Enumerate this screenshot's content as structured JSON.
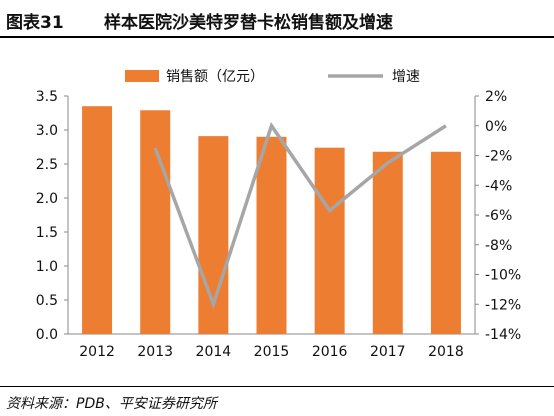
{
  "figure": {
    "label": "图表31",
    "title": "样本医院沙美特罗替卡松销售额及增速",
    "source": "资料来源：PDB、平安证券研究所"
  },
  "chart_data": {
    "type": "bar",
    "categories": [
      "2012",
      "2013",
      "2014",
      "2015",
      "2016",
      "2017",
      "2018"
    ],
    "series": [
      {
        "name": "销售额（亿元）",
        "type": "bar",
        "axis": "left",
        "color": "#ED7D31",
        "values": [
          3.35,
          3.29,
          2.91,
          2.9,
          2.74,
          2.68,
          2.68
        ]
      },
      {
        "name": "增速",
        "type": "line",
        "axis": "right",
        "color": "#A6A6A6",
        "values": [
          null,
          -1.5,
          -12.0,
          0.0,
          -5.7,
          -2.5,
          0.0
        ]
      }
    ],
    "y_left": {
      "min": 0,
      "max": 3.5,
      "ticks": [
        "0.0",
        "0.5",
        "1.0",
        "1.5",
        "2.0",
        "2.5",
        "3.0",
        "3.5"
      ]
    },
    "y_right": {
      "min": -14,
      "max": 2,
      "ticks": [
        "-14%",
        "-12%",
        "-10%",
        "-8%",
        "-6%",
        "-4%",
        "-2%",
        "0%",
        "2%"
      ]
    },
    "grid": false,
    "legend": "top"
  }
}
